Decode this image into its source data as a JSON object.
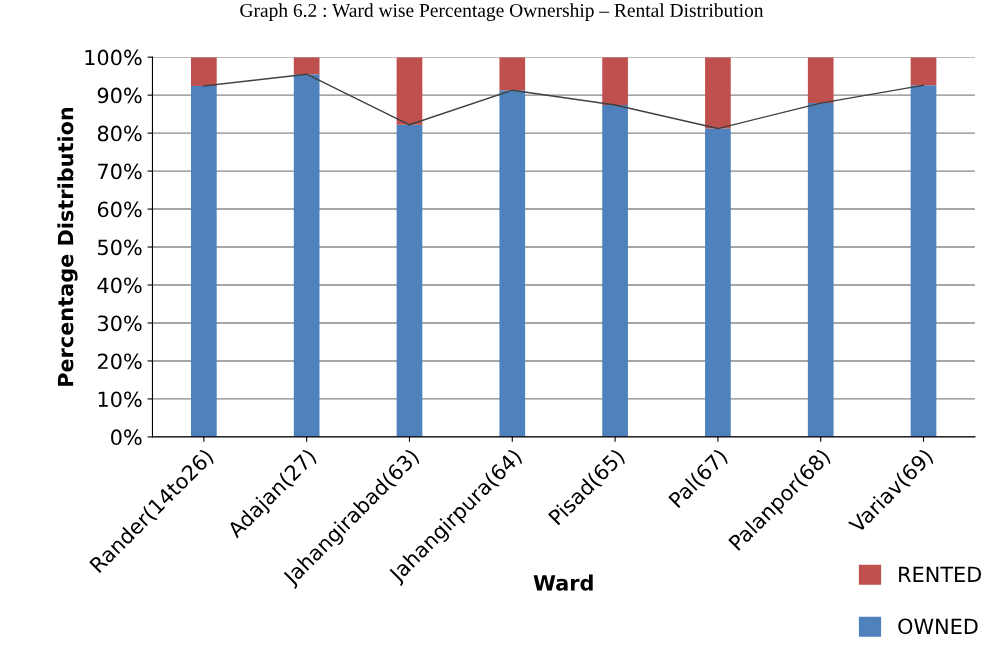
{
  "chart_data": {
    "type": "bar",
    "title": "Graph 6.2 : Ward wise Percentage Ownership – Rental Distribution",
    "xlabel": "Ward",
    "ylabel": "Percentage Distribution",
    "categories": [
      "Rander(14to26)",
      "Adajan(27)",
      "Jahangirabad(63)",
      "Jahangirpura(64)",
      "Pisad(65)",
      "Pal(67)",
      "Palanpor(68)",
      "Variav(69)"
    ],
    "stacked": true,
    "series": [
      {
        "name": "OWNED",
        "color": "#4f81bd",
        "values": [
          92.4,
          95.5,
          82.2,
          91.3,
          87.4,
          81.2,
          87.9,
          92.6
        ]
      },
      {
        "name": "RENTED",
        "color": "#c0504d",
        "values": [
          7.6,
          4.5,
          17.8,
          8.7,
          12.6,
          18.8,
          12.1,
          7.4
        ]
      },
      {
        "type": "line",
        "color": "#404040",
        "values": [
          92.4,
          95.5,
          82.2,
          91.3,
          87.4,
          81.2,
          87.9,
          92.6
        ]
      }
    ],
    "ylim": [
      0,
      100
    ],
    "yticks": [
      {
        "value": 0,
        "label": "0%"
      },
      {
        "value": 10,
        "label": "10%"
      },
      {
        "value": 20,
        "label": "20%"
      },
      {
        "value": 30,
        "label": "30%"
      },
      {
        "value": 40,
        "label": "40%"
      },
      {
        "value": 50,
        "label": "50%"
      },
      {
        "value": 60,
        "label": "60%"
      },
      {
        "value": 70,
        "label": "70%"
      },
      {
        "value": 80,
        "label": "80%"
      },
      {
        "value": 90,
        "label": "90%"
      },
      {
        "value": 100,
        "label": "100%"
      }
    ],
    "grid": "y",
    "legend": "bottom right"
  }
}
